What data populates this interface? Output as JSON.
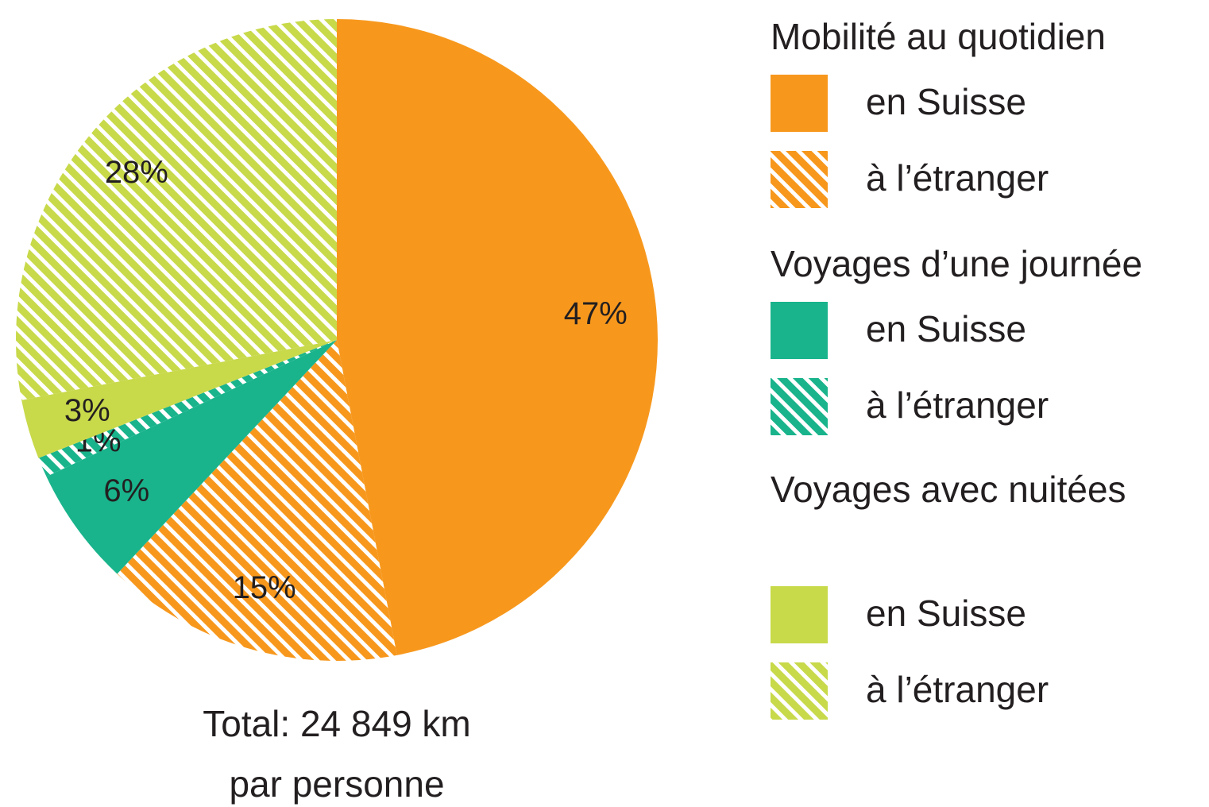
{
  "chart_data": {
    "type": "pie",
    "legend_groups": [
      {
        "title": "Mobilité au quotidien",
        "items": [
          "en Suisse",
          "à l’étranger"
        ]
      },
      {
        "title": "Voyages d’une journée",
        "items": [
          "en Suisse",
          "à l’étranger"
        ]
      },
      {
        "title": "Voyages avec nuitées",
        "items": [
          "en Suisse",
          "à l’étranger"
        ]
      }
    ],
    "values": [
      47,
      15,
      6,
      1,
      3,
      28
    ],
    "value_labels": [
      "47%",
      "15%",
      "6%",
      "1%",
      "3%",
      "28%"
    ],
    "colors": [
      "#f7981d",
      "#f7981d",
      "#19b48c",
      "#19b48c",
      "#c8d94a",
      "#c8d94a"
    ],
    "hatched": [
      false,
      true,
      false,
      true,
      false,
      true
    ],
    "note": [
      "Total: 24 849 km",
      "par personne"
    ]
  }
}
